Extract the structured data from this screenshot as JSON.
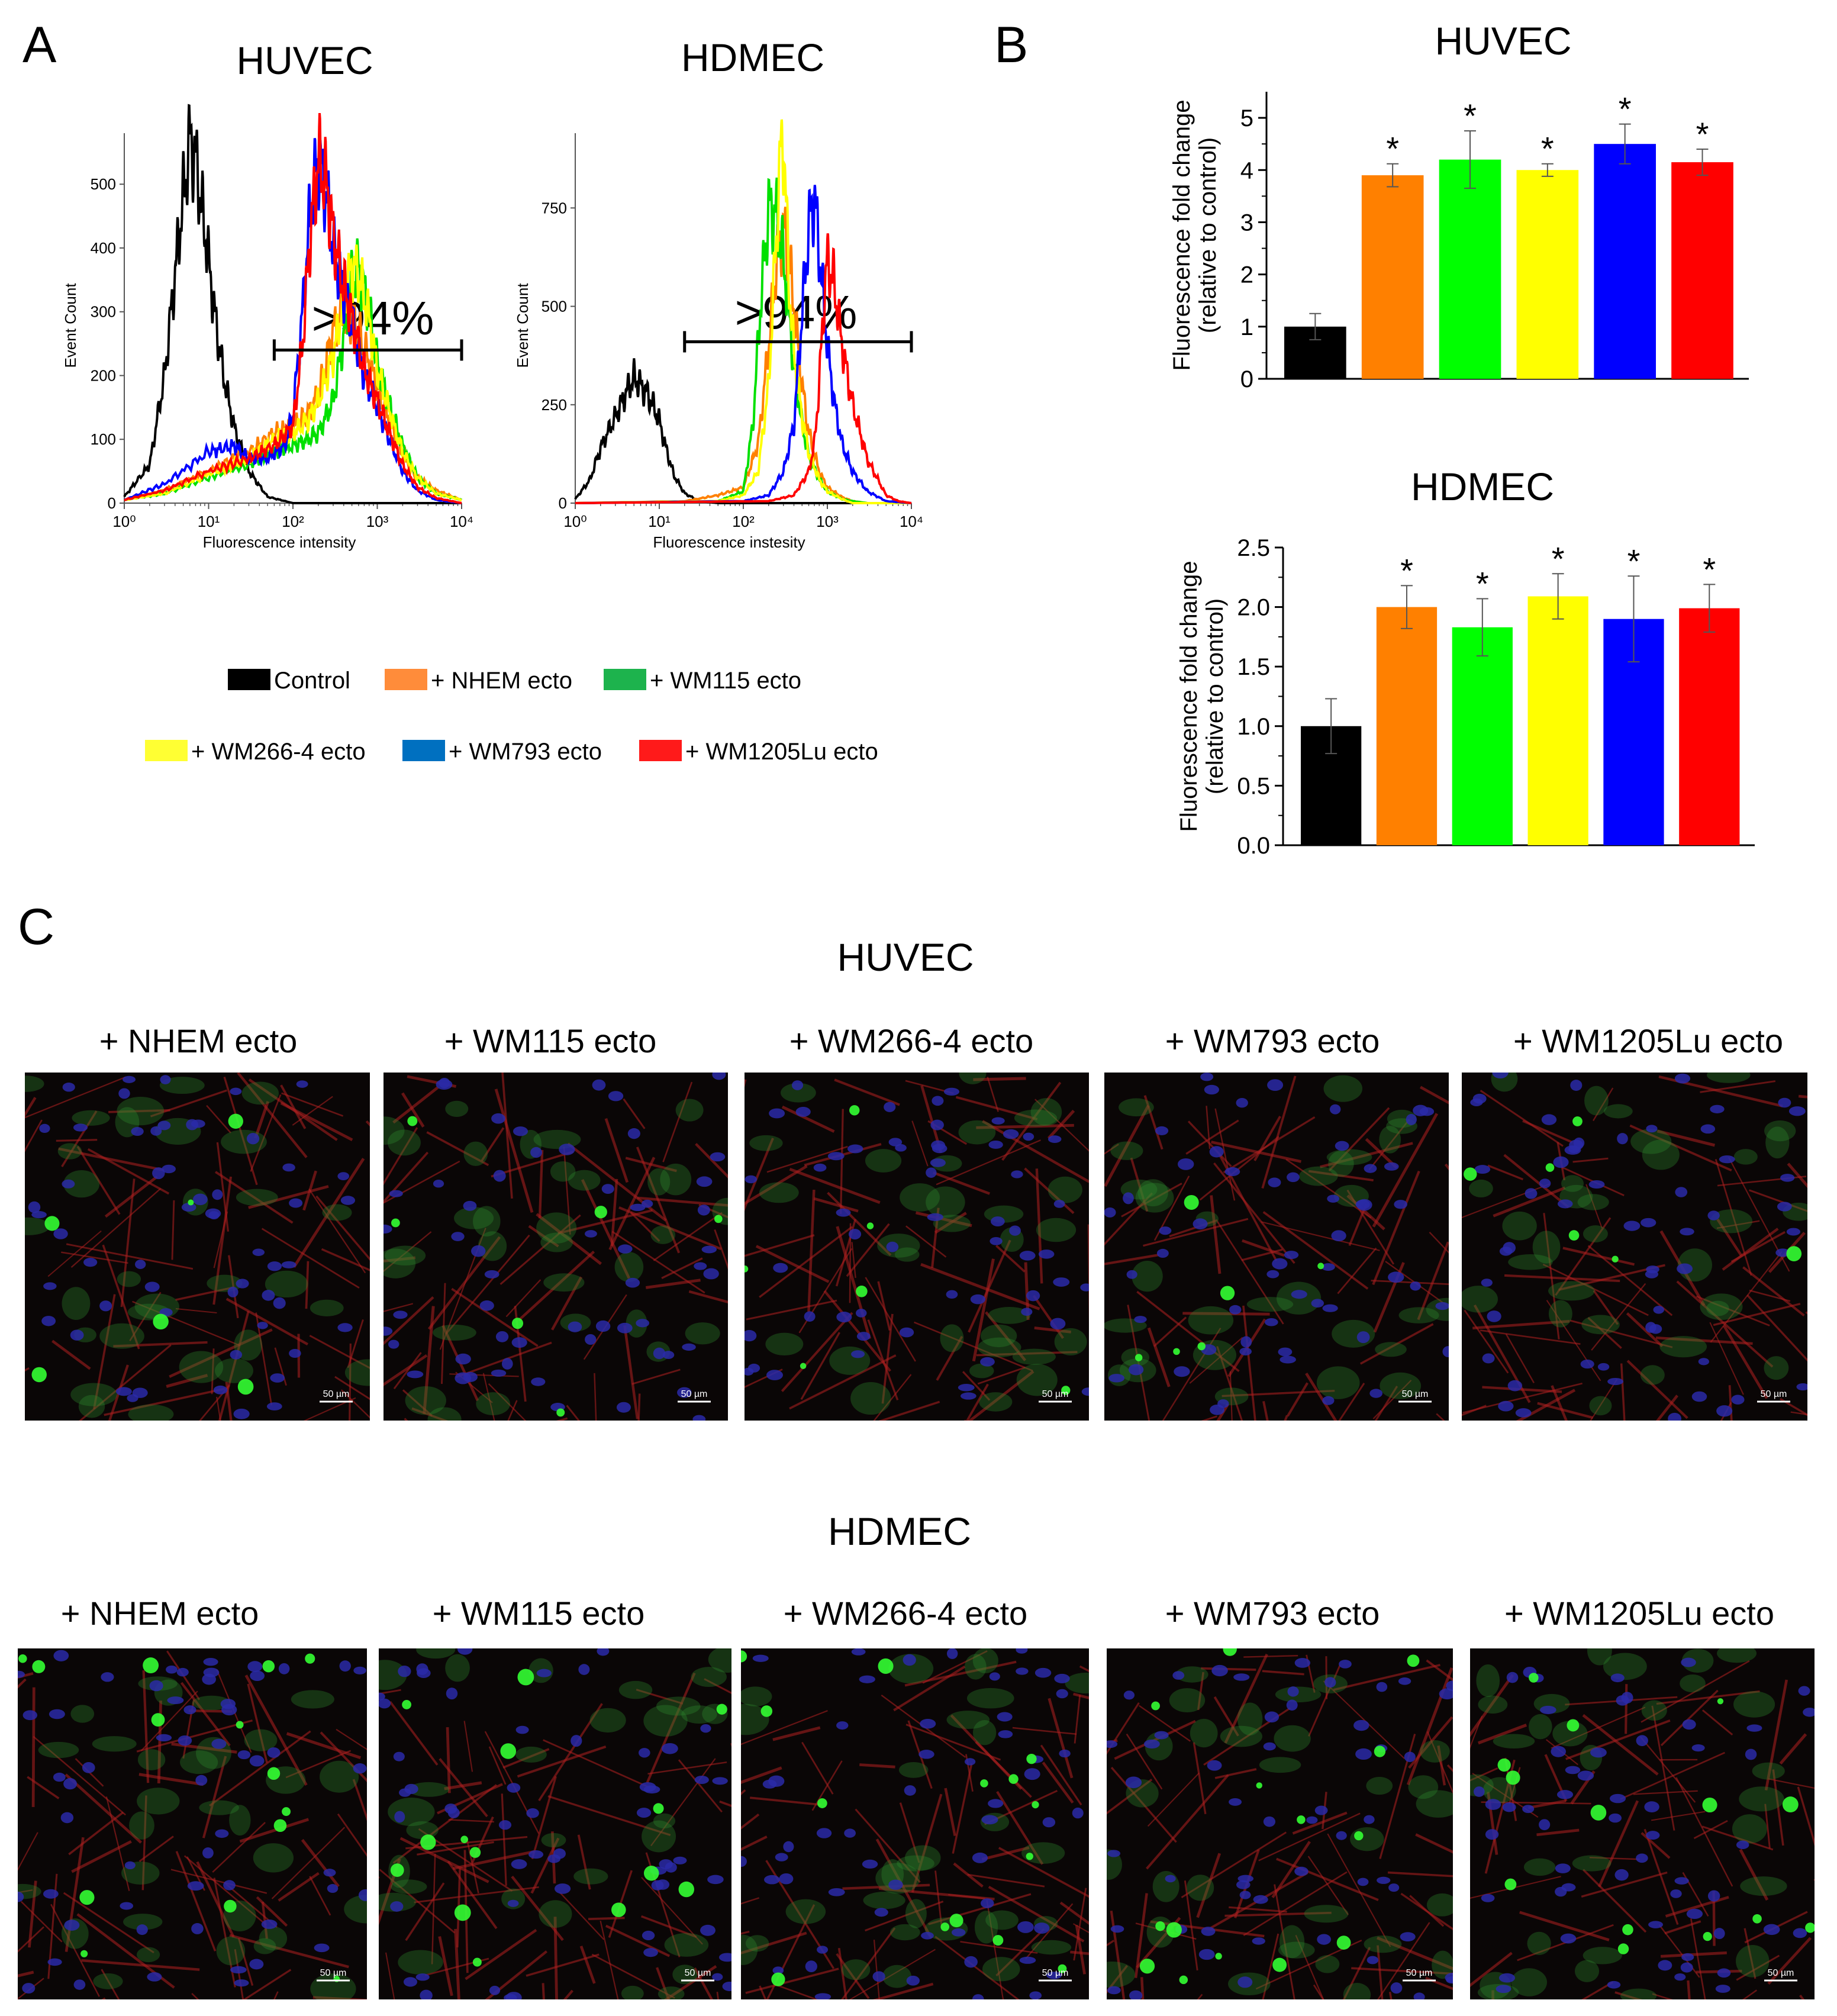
{
  "panels": {
    "A": {
      "letter": "A"
    },
    "B": {
      "letter": "B"
    },
    "C": {
      "letter": "C"
    }
  },
  "colors": {
    "control": "#000000",
    "nhem": "#ff8000",
    "wm115": "#00e000",
    "wm266": "#ffff00",
    "wm793": "#0000ff",
    "wm1205": "#ff0000",
    "legend_wm793": "#0070c0"
  },
  "legend": {
    "items": [
      {
        "label": "Control",
        "color": "#000000"
      },
      {
        "label": "+ NHEM ecto",
        "color": "#ff8c3a"
      },
      {
        "label": "+ WM115 ecto",
        "color": "#1db34d"
      },
      {
        "label": "+ WM266-4 ecto",
        "color": "#ffff33"
      },
      {
        "label": "+ WM793 ecto",
        "color": "#0070c0"
      },
      {
        "label": "+ WM1205Lu ecto",
        "color": "#ff1a1a"
      }
    ]
  },
  "chart_data": [
    {
      "type": "line",
      "panel": "A",
      "title": "HUVEC",
      "xlabel": "Fluorescence intensity",
      "ylabel": "Event Count",
      "xscale": "log",
      "xlim": [
        1,
        10000
      ],
      "ylim": [
        0,
        580
      ],
      "x_ticks": [
        "10⁰",
        "10¹",
        "10²",
        "10³",
        "10⁴"
      ],
      "y_ticks": [
        0,
        100,
        200,
        300,
        400,
        500
      ],
      "gate_label": ">94%",
      "gate_range": [
        60,
        10000
      ],
      "gate_level": 240,
      "series": [
        {
          "key": "control",
          "x": [
            1,
            2,
            3,
            4,
            5,
            6,
            7,
            8,
            10,
            12,
            15,
            20,
            30,
            50,
            100,
            10000
          ],
          "y": [
            10,
            60,
            200,
            360,
            480,
            570,
            540,
            480,
            380,
            290,
            200,
            120,
            50,
            10,
            0,
            0
          ]
        },
        {
          "key": "nhem",
          "x": [
            1,
            3,
            10,
            30,
            60,
            100,
            150,
            200,
            250,
            300,
            400,
            500,
            600,
            800,
            1000,
            1500,
            2000,
            3000,
            5000,
            10000
          ],
          "y": [
            5,
            20,
            50,
            80,
            110,
            120,
            140,
            170,
            220,
            270,
            300,
            290,
            270,
            220,
            180,
            120,
            80,
            40,
            20,
            5
          ]
        },
        {
          "key": "wm115",
          "x": [
            1,
            3,
            10,
            30,
            60,
            100,
            150,
            200,
            300,
            400,
            500,
            600,
            800,
            1000,
            1500,
            2000,
            3000,
            5000,
            10000
          ],
          "y": [
            5,
            15,
            40,
            60,
            80,
            90,
            100,
            110,
            160,
            260,
            350,
            370,
            300,
            220,
            140,
            90,
            40,
            15,
            5
          ]
        },
        {
          "key": "wm266",
          "x": [
            1,
            3,
            10,
            30,
            60,
            100,
            150,
            200,
            300,
            400,
            500,
            600,
            800,
            1000,
            1500,
            2000,
            3000,
            5000,
            10000
          ],
          "y": [
            5,
            15,
            45,
            70,
            100,
            110,
            130,
            160,
            230,
            320,
            370,
            360,
            290,
            210,
            130,
            80,
            40,
            15,
            5
          ]
        },
        {
          "key": "wm793",
          "x": [
            1,
            3,
            10,
            20,
            30,
            50,
            80,
            100,
            130,
            160,
            200,
            250,
            300,
            400,
            500,
            700,
            1000,
            1500,
            2000,
            3000,
            5000,
            10000
          ],
          "y": [
            5,
            30,
            80,
            90,
            70,
            70,
            90,
            140,
            300,
            460,
            540,
            480,
            400,
            330,
            280,
            200,
            150,
            90,
            50,
            20,
            5,
            0
          ]
        },
        {
          "key": "wm1205",
          "x": [
            1,
            3,
            10,
            30,
            60,
            100,
            130,
            160,
            200,
            250,
            300,
            400,
            500,
            700,
            1000,
            1500,
            2000,
            3000,
            5000,
            10000
          ],
          "y": [
            5,
            20,
            50,
            70,
            90,
            120,
            250,
            420,
            540,
            500,
            420,
            340,
            290,
            210,
            160,
            100,
            60,
            25,
            8,
            0
          ]
        }
      ]
    },
    {
      "type": "line",
      "panel": "A",
      "title": "HDMEC",
      "xlabel": "Fluorescence instesity",
      "ylabel": "Event Count",
      "xscale": "log",
      "xlim": [
        1,
        10000
      ],
      "ylim": [
        0,
        940
      ],
      "x_ticks": [
        "10⁰",
        "10¹",
        "10²",
        "10³",
        "10⁴"
      ],
      "y_ticks": [
        0,
        250,
        500,
        750
      ],
      "gate_label": ">94%",
      "gate_range": [
        20,
        10000
      ],
      "gate_level": 410,
      "series": [
        {
          "key": "control",
          "x": [
            1,
            1.5,
            2,
            3,
            4,
            5,
            6,
            7,
            8,
            10,
            12,
            15,
            20,
            30,
            50,
            100,
            10000
          ],
          "y": [
            10,
            60,
            140,
            220,
            280,
            320,
            300,
            280,
            260,
            210,
            140,
            70,
            25,
            5,
            0,
            0,
            0
          ]
        },
        {
          "key": "nhem",
          "x": [
            1,
            20,
            50,
            100,
            150,
            200,
            250,
            300,
            350,
            400,
            500,
            600,
            800,
            1000,
            1500,
            2000,
            3000,
            10000
          ],
          "y": [
            0,
            5,
            20,
            40,
            150,
            400,
            620,
            700,
            620,
            500,
            300,
            180,
            80,
            40,
            15,
            5,
            0,
            0
          ]
        },
        {
          "key": "wm115",
          "x": [
            1,
            50,
            100,
            130,
            160,
            200,
            250,
            300,
            350,
            400,
            500,
            600,
            800,
            1000,
            1500,
            2000,
            3000,
            10000
          ],
          "y": [
            0,
            5,
            30,
            200,
            500,
            750,
            730,
            620,
            480,
            350,
            200,
            120,
            60,
            30,
            10,
            5,
            0,
            0
          ]
        },
        {
          "key": "wm266",
          "x": [
            1,
            50,
            100,
            150,
            200,
            250,
            280,
            300,
            320,
            350,
            400,
            500,
            600,
            800,
            1000,
            1500,
            2000,
            10000
          ],
          "y": [
            0,
            5,
            20,
            80,
            300,
            700,
            900,
            920,
            780,
            560,
            380,
            220,
            130,
            60,
            30,
            10,
            0,
            0
          ]
        },
        {
          "key": "wm793",
          "x": [
            1,
            100,
            200,
            300,
            400,
            500,
            600,
            700,
            800,
            1000,
            1200,
            1500,
            2000,
            3000,
            5000,
            10000
          ],
          "y": [
            0,
            5,
            20,
            80,
            200,
            480,
            700,
            780,
            640,
            400,
            260,
            150,
            80,
            30,
            5,
            0
          ]
        },
        {
          "key": "wm1205",
          "x": [
            1,
            200,
            400,
            600,
            700,
            800,
            900,
            1000,
            1200,
            1500,
            2000,
            3000,
            5000,
            7000,
            10000
          ],
          "y": [
            0,
            5,
            20,
            80,
            150,
            300,
            500,
            620,
            560,
            400,
            250,
            110,
            20,
            5,
            0
          ]
        }
      ]
    },
    {
      "type": "bar",
      "panel": "B",
      "title": "HUVEC",
      "ylabel": "Fluorescence fold change\n(relative to control)",
      "ylim": [
        0,
        5.5
      ],
      "y_ticks": [
        "0",
        "1",
        "2",
        "3",
        "4",
        "5"
      ],
      "categories": [
        "Control",
        "+ NHEM ecto",
        "+ WM115 ecto",
        "+ WM266-4 ecto",
        "+ WM793 ecto",
        "+ WM1205Lu ecto"
      ],
      "values": [
        1.0,
        3.9,
        4.2,
        4.0,
        4.5,
        4.15
      ],
      "errors": [
        0.25,
        0.22,
        0.55,
        0.12,
        0.38,
        0.25
      ],
      "significance": [
        "",
        "*",
        "*",
        "*",
        "*",
        "*"
      ]
    },
    {
      "type": "bar",
      "panel": "B",
      "title": "HDMEC",
      "ylabel": "Fluorescence fold change\n(relative to control)",
      "ylim": [
        0,
        2.5
      ],
      "y_ticks": [
        "0.0",
        "0.5",
        "1.0",
        "1.5",
        "2.0",
        "2.5"
      ],
      "categories": [
        "Control",
        "+ NHEM ecto",
        "+ WM115 ecto",
        "+ WM266-4 ecto",
        "+ WM793 ecto",
        "+ WM1205Lu ecto"
      ],
      "values": [
        1.0,
        2.0,
        1.83,
        2.09,
        1.9,
        1.99
      ],
      "errors": [
        0.23,
        0.18,
        0.24,
        0.19,
        0.36,
        0.2
      ],
      "significance": [
        "",
        "*",
        "*",
        "*",
        "*",
        "*"
      ]
    }
  ],
  "micrographs": {
    "rows": [
      {
        "title": "HUVEC",
        "panels": [
          {
            "label": "+ NHEM ecto",
            "scale": "50 µm"
          },
          {
            "label": "+ WM115 ecto",
            "scale": "50 µm"
          },
          {
            "label": "+ WM266-4 ecto",
            "scale": "50 µm"
          },
          {
            "label": "+ WM793 ecto",
            "scale": "50 µm"
          },
          {
            "label": "+ WM1205Lu ecto",
            "scale": "50 µm"
          }
        ]
      },
      {
        "title": "HDMEC",
        "panels": [
          {
            "label": "+ NHEM ecto",
            "scale": "50 µm"
          },
          {
            "label": "+ WM115 ecto",
            "scale": "50 µm"
          },
          {
            "label": "+ WM266-4 ecto",
            "scale": "50 µm"
          },
          {
            "label": "+ WM793 ecto",
            "scale": "50 µm"
          },
          {
            "label": "+ WM1205Lu ecto",
            "scale": "50 µm"
          }
        ]
      }
    ]
  }
}
